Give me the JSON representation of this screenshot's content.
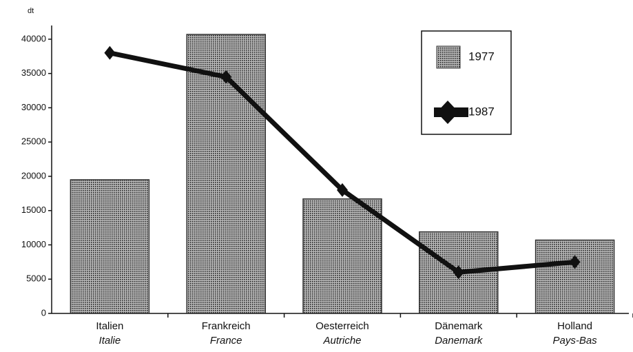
{
  "chart_data": {
    "type": "bar",
    "y_label": "dt",
    "categories": [
      [
        "Italien",
        "Italie"
      ],
      [
        "Frankreich",
        "France"
      ],
      [
        "Oesterreich",
        "Autriche"
      ],
      [
        "Dänemark",
        "Danemark"
      ],
      [
        "Holland",
        "Pays-Bas"
      ]
    ],
    "series": [
      {
        "name": "1977",
        "type": "bar",
        "color": "#333333",
        "values": [
          19500,
          40700,
          16700,
          11900,
          10700
        ]
      },
      {
        "name": "1987",
        "type": "line",
        "color": "#111111",
        "values": [
          38000,
          34500,
          18000,
          6000,
          7500
        ]
      }
    ],
    "ylim": [
      0,
      42000
    ],
    "yticks": [
      0,
      5000,
      10000,
      15000,
      20000,
      25000,
      30000,
      35000,
      40000
    ],
    "legend": "upper right"
  }
}
